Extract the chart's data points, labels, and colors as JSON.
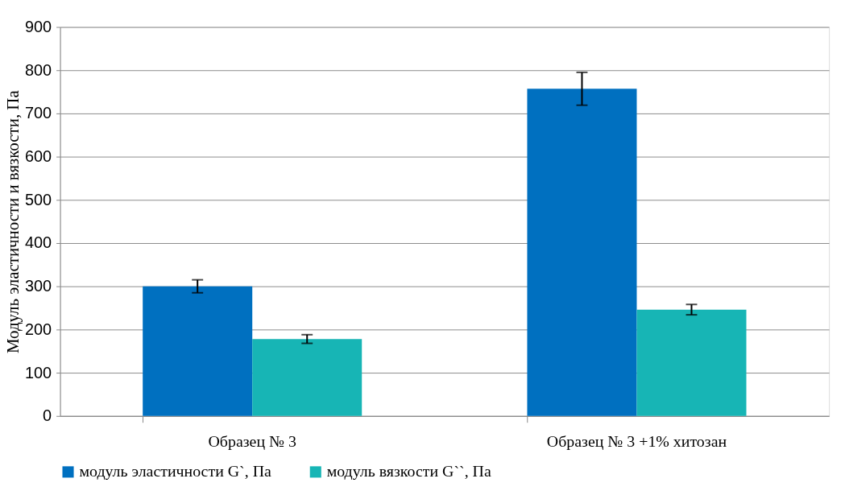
{
  "chart_data": {
    "type": "bar",
    "ylabel": "Модуль эластичности и вязкости, Па",
    "categories": [
      "Образец № 3",
      "Образец № 3 +1% хитозан"
    ],
    "series": [
      {
        "name": "модуль эластичности  G`, Па",
        "color": "#0070c0",
        "values": [
          300,
          757
        ],
        "errors": [
          15,
          38
        ]
      },
      {
        "name": "модуль вязкости G``, Па",
        "color": "#17b5b5",
        "values": [
          178,
          246
        ],
        "errors": [
          10,
          12
        ]
      }
    ],
    "ylim": [
      0,
      900
    ],
    "yticks": [
      0,
      100,
      200,
      300,
      400,
      500,
      600,
      700,
      800,
      900
    ],
    "grid": "y",
    "legend": "bottom"
  }
}
